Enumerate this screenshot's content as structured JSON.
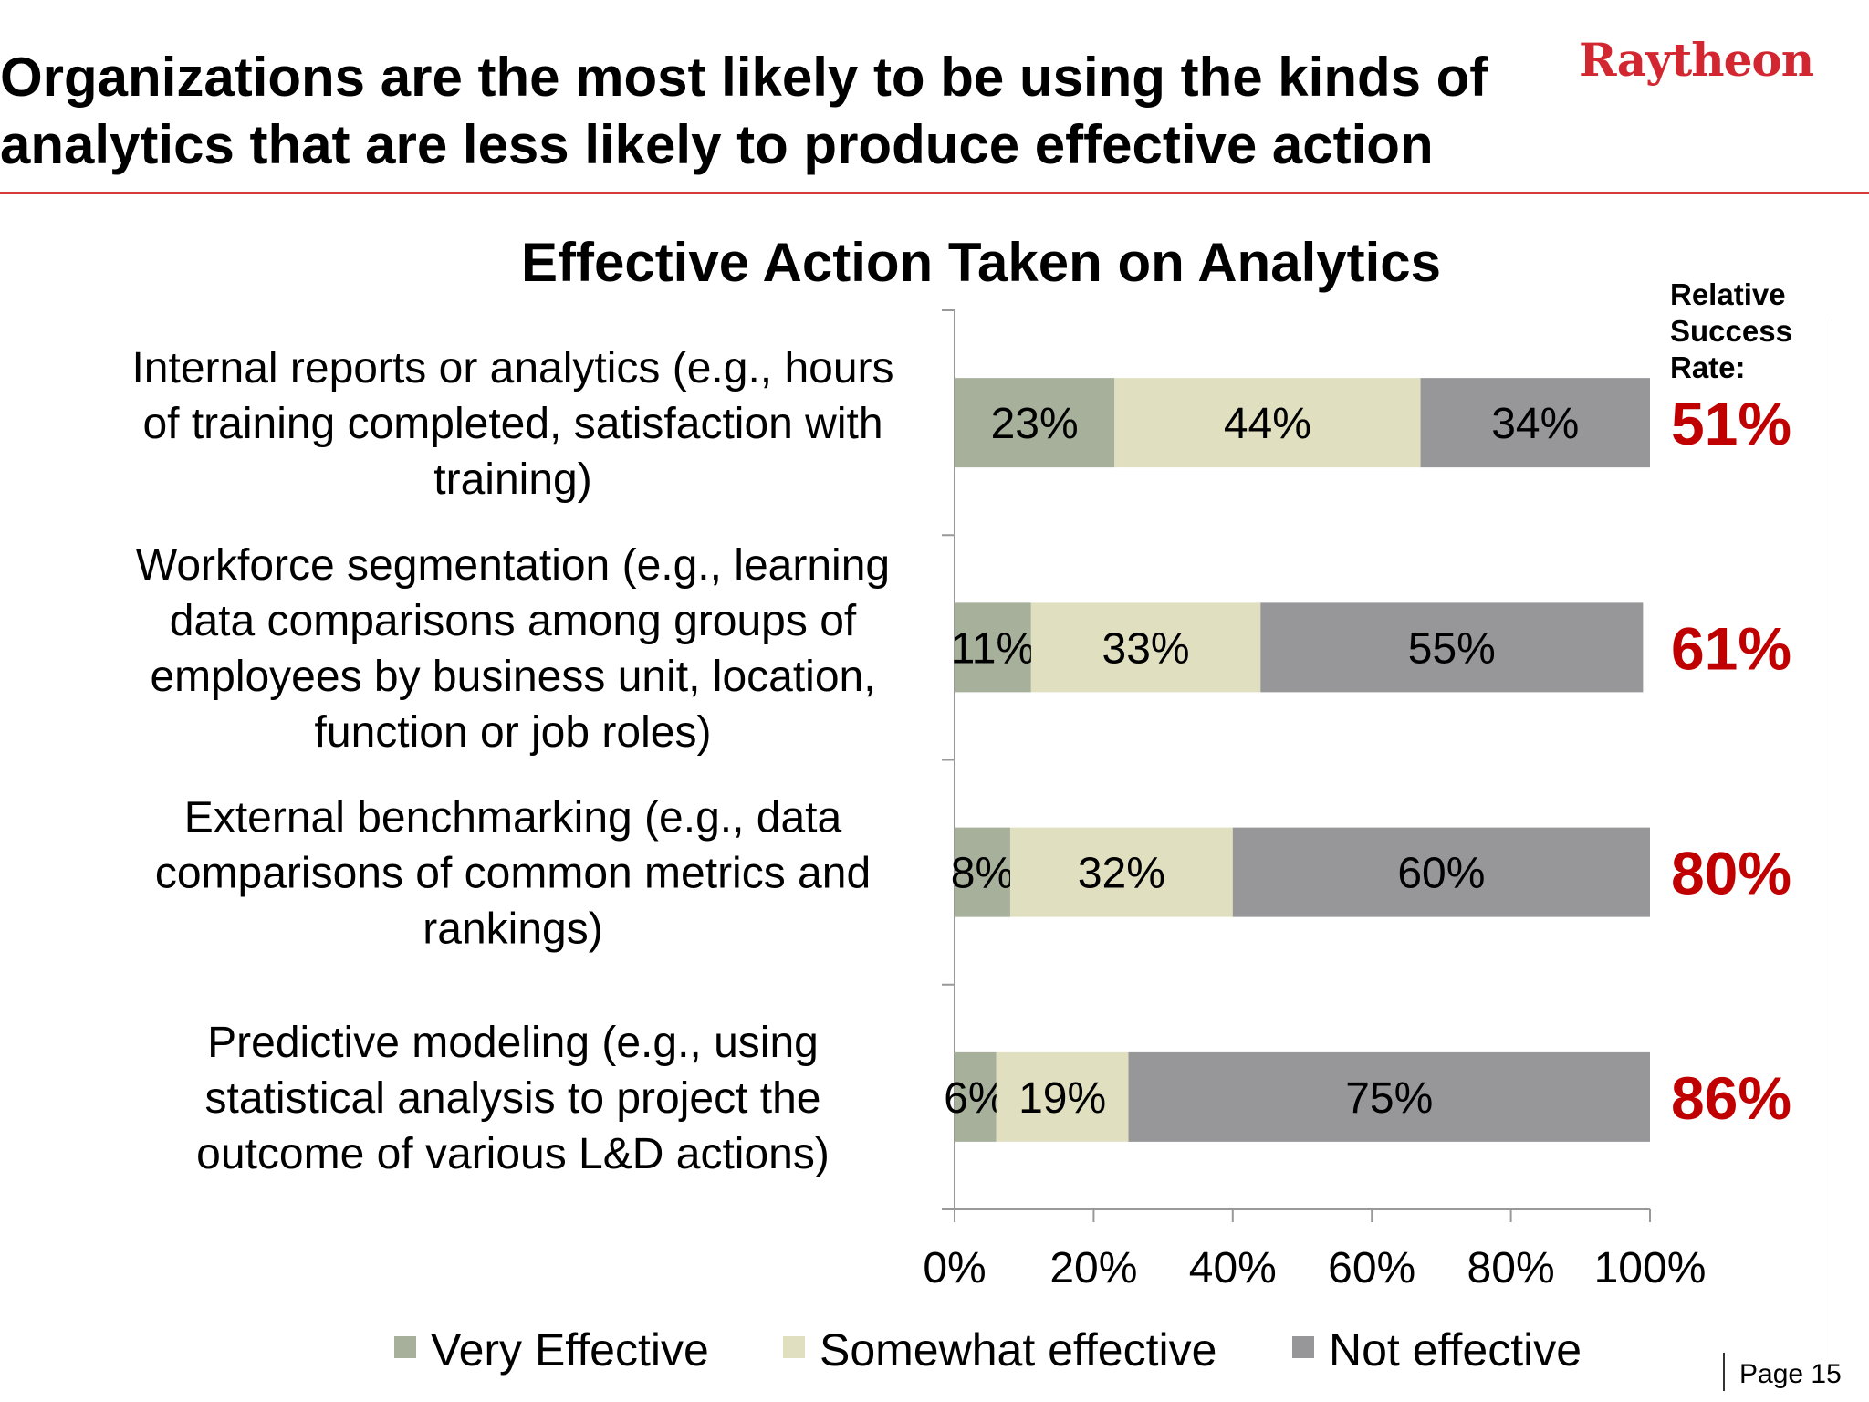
{
  "header": {
    "title_lines": [
      "Organizations are the most likely to be using the kinds of",
      "analytics that are less likely to produce effective action"
    ],
    "logo_text": "Raytheon"
  },
  "chart_data": {
    "type": "bar",
    "orientation": "horizontal",
    "stacked": true,
    "title": "Effective Action Taken on Analytics",
    "categories": [
      [
        "Internal reports or analytics (e.g., hours",
        "of training completed, satisfaction with",
        "training)"
      ],
      [
        "Workforce segmentation (e.g., learning",
        "data comparisons among groups of",
        "employees by business unit, location,",
        "function or job roles)"
      ],
      [
        "External benchmarking (e.g., data",
        "comparisons of common metrics and",
        "rankings)"
      ],
      [
        "Predictive modeling (e.g., using",
        "statistical analysis to project the",
        "outcome of various L&D actions)"
      ]
    ],
    "series": [
      {
        "name": "Very Effective",
        "values": [
          23,
          11,
          8,
          6
        ],
        "color": "#a7b09b"
      },
      {
        "name": "Somewhat effective",
        "values": [
          44,
          33,
          32,
          19
        ],
        "color": "#e0e0c0"
      },
      {
        "name": "Not effective",
        "values": [
          34,
          55,
          60,
          75
        ],
        "color": "#979699"
      }
    ],
    "value_suffix": "%",
    "xlim": [
      0,
      100
    ],
    "x_ticks": [
      "0%",
      "20%",
      "40%",
      "60%",
      "80%",
      "100%"
    ],
    "legend_position": "bottom",
    "relative_success": {
      "heading": [
        "Relative",
        "Success",
        "Rate:"
      ],
      "values": [
        "51%",
        "61%",
        "80%",
        "86%"
      ]
    }
  },
  "footer": {
    "page_label": "Page 15"
  }
}
